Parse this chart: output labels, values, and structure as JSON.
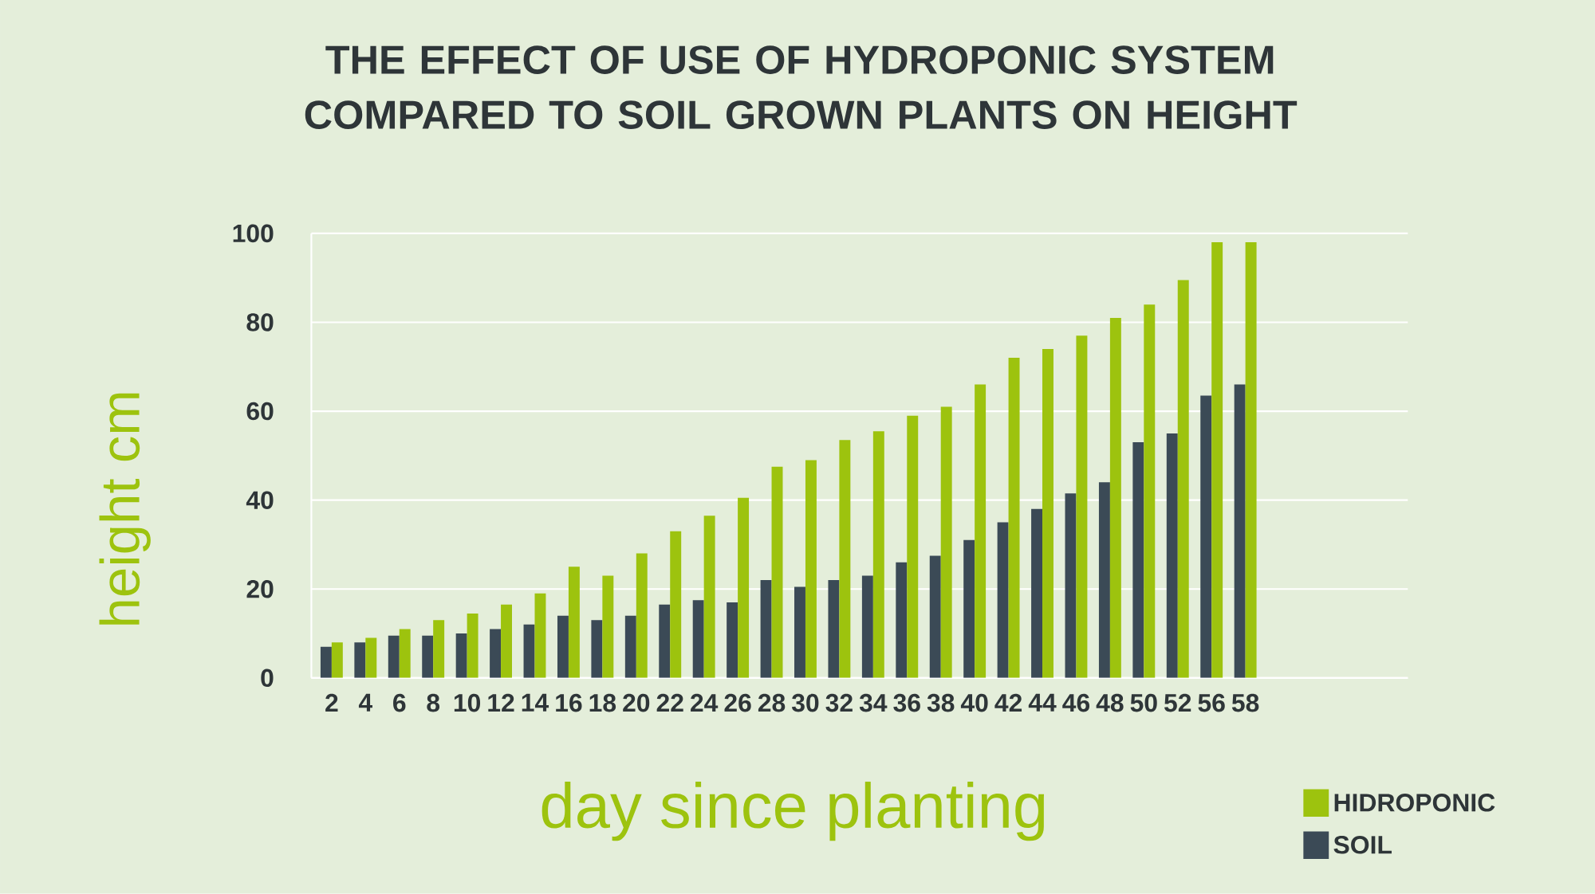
{
  "chart_data": {
    "type": "bar",
    "title": "THE EFFECT OF USE OF HYDROPONIC SYSTEM COMPARED TO SOIL GROWN PLANTS ON HEIGHT",
    "xlabel": "day since planting",
    "ylabel": "height cm",
    "categories": [
      "2",
      "4",
      "6",
      "8",
      "10",
      "12",
      "14",
      "16",
      "18",
      "20",
      "22",
      "24",
      "26",
      "28",
      "30",
      "32",
      "34",
      "36",
      "38",
      "40",
      "42",
      "44",
      "46",
      "48",
      "50",
      "52",
      "56",
      "58"
    ],
    "series": [
      {
        "name": "SOIL",
        "color": "#3b4a56",
        "values": [
          7,
          8,
          9.5,
          9.5,
          10,
          11,
          12,
          14,
          13,
          14,
          16.5,
          17.5,
          17,
          22,
          20.5,
          22,
          23,
          26,
          27.5,
          31,
          35,
          38,
          41.5,
          44,
          53,
          55,
          63.5,
          66
        ]
      },
      {
        "name": "HIDROPONIC",
        "color": "#9dc30e",
        "values": [
          8,
          9,
          11,
          13,
          14.5,
          16.5,
          19,
          25,
          23,
          28,
          33,
          36.5,
          40.5,
          47.5,
          49,
          53.5,
          55.5,
          59,
          61,
          66,
          72,
          74,
          77,
          81,
          84,
          89.5,
          98,
          98
        ]
      }
    ],
    "ylim": [
      0,
      100
    ],
    "yticks": [
      0,
      20,
      40,
      60,
      80,
      100
    ],
    "grid": "y",
    "legend": "bottom right"
  }
}
